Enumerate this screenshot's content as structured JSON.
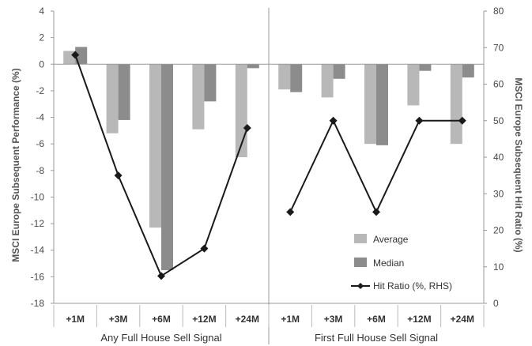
{
  "chart_data": {
    "type": "bar",
    "categories": [
      "+1M",
      "+3M",
      "+6M",
      "+12M",
      "+24M",
      "+1M",
      "+3M",
      "+6M",
      "+12M",
      "+24M"
    ],
    "groups": [
      {
        "label": "Any Full House Sell Signal",
        "categories": [
          0,
          1,
          2,
          3,
          4
        ]
      },
      {
        "label": "First Full House Sell Signal",
        "categories": [
          5,
          6,
          7,
          8,
          9
        ]
      }
    ],
    "series": [
      {
        "name": "Average",
        "axis": "left",
        "kind": "bar",
        "color": "#b8b8b8",
        "values": [
          1.0,
          -5.2,
          -12.3,
          -4.9,
          -7.0,
          -1.9,
          -2.5,
          -6.0,
          -3.1,
          -6.0
        ]
      },
      {
        "name": "Median",
        "axis": "left",
        "kind": "bar",
        "color": "#8c8c8c",
        "values": [
          1.3,
          -4.2,
          -15.5,
          -2.8,
          -0.3,
          -2.1,
          -1.1,
          -6.1,
          -0.5,
          -1.0
        ]
      },
      {
        "name": "Hit Ratio (%, RHS)",
        "axis": "right",
        "kind": "line",
        "color": "#1a1a1a",
        "values": [
          68,
          35,
          7.5,
          15,
          48,
          25,
          50,
          25,
          50,
          50
        ]
      }
    ],
    "ylabel": "MSCI Europe Subsequent Performance (%)",
    "y2label": "MSCI Europe Subsequent Hit Ratio (%)",
    "ylim": [
      -18,
      4
    ],
    "y2lim": [
      0,
      80
    ],
    "yticks": [
      "4",
      "2",
      "0",
      "-2",
      "-4",
      "-6",
      "-8",
      "-10",
      "-12",
      "-14",
      "-16",
      "-18"
    ],
    "y2ticks": [
      "80",
      "70",
      "60",
      "50",
      "40",
      "30",
      "20",
      "10",
      "0"
    ],
    "legend": {
      "position": "bottom-right",
      "items": [
        "Average",
        "Median",
        "Hit Ratio (%, RHS)"
      ]
    },
    "grid": false
  }
}
